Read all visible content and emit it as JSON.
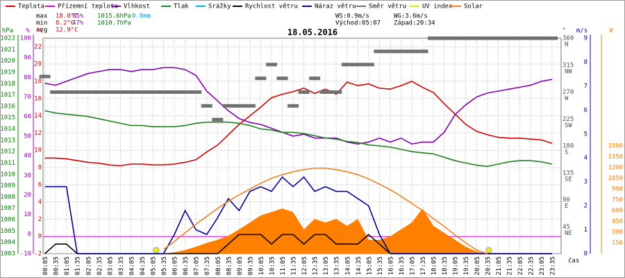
{
  "chart_data": {
    "type": "line",
    "title": "18.05.2016",
    "x_label": "čas",
    "stats": [
      {
        "label": "max",
        "values": [
          "18.0°C",
          "85%",
          "1015.6hPa",
          "0.0mm"
        ]
      },
      {
        "label": "min",
        "values": [
          "8.2°C",
          "47%",
          "1010.7hPa"
        ]
      },
      {
        "label": "avg",
        "values": [
          "12.9°C"
        ]
      }
    ],
    "wind_stats": [
      "WS:0.9m/s",
      "WG:3.6m/s"
    ],
    "sun": [
      "Východ:05:07",
      "Západ:20:34"
    ],
    "categories": [
      "00:05",
      "00:35",
      "01:05",
      "01:35",
      "02:05",
      "02:35",
      "03:05",
      "03:35",
      "04:05",
      "04:35",
      "05:05",
      "05:35",
      "06:05",
      "06:35",
      "07:05",
      "07:35",
      "08:05",
      "08:35",
      "09:05",
      "09:35",
      "10:05",
      "10:35",
      "11:05",
      "11:35",
      "12:05",
      "12:35",
      "13:05",
      "13:35",
      "14:05",
      "14:35",
      "15:05",
      "15:35",
      "16:05",
      "16:35",
      "17:05",
      "17:35",
      "18:05",
      "18:35",
      "19:05",
      "19:35",
      "20:05",
      "20:35",
      "21:05",
      "21:35",
      "22:05",
      "22:35",
      "23:05",
      "23:35"
    ],
    "axes": [
      {
        "title": "hPa",
        "color": "#008000",
        "lim": [
          1003,
          1022
        ],
        "ticks": [
          1003,
          1004,
          1005,
          1006,
          1007,
          1008,
          1009,
          1010,
          1011,
          1012,
          1013,
          1014,
          1015,
          1016,
          1017,
          1018,
          1019,
          1020,
          1021,
          1022
        ]
      },
      {
        "title": "%",
        "color": "#a000c0",
        "lim": [
          -10,
          100
        ],
        "ticks": [
          -10,
          0,
          10,
          20,
          30,
          40,
          50,
          60,
          70,
          80,
          90,
          100
        ]
      },
      {
        "title": "°C",
        "color": "#d00000",
        "lim": [
          -2,
          23
        ],
        "ticks": [
          -2,
          0,
          2,
          4,
          6,
          8,
          10,
          12,
          14,
          16,
          18,
          20,
          22
        ]
      },
      {
        "title": "°",
        "color": "#505050",
        "lim": [
          0,
          360
        ],
        "ticks": [
          45,
          90,
          135,
          180,
          225,
          270,
          315,
          360
        ],
        "tick_names": [
          "NE",
          "E",
          "SE",
          "S",
          "SW",
          "W",
          "NW",
          "N"
        ]
      },
      {
        "title": "m/s",
        "color": "#000090",
        "lim": [
          0,
          9
        ],
        "ticks": [
          0,
          1,
          2,
          3,
          4,
          5,
          6,
          7,
          8,
          9
        ]
      },
      {
        "title": "W",
        "color": "#ff8000",
        "lim": [
          0,
          3000
        ],
        "ticks": [
          150,
          300,
          450,
          600,
          750,
          900,
          1050,
          1200,
          1350,
          1500
        ]
      }
    ],
    "grid": true,
    "series": [
      {
        "name": "Teplota",
        "color": "#d00000",
        "axis": 2,
        "style": "line",
        "values": [
          9.1,
          9.1,
          9.0,
          8.8,
          8.6,
          8.5,
          8.3,
          8.2,
          8.4,
          8.4,
          8.3,
          8.3,
          8.4,
          8.6,
          8.9,
          9.8,
          10.6,
          11.8,
          13.0,
          14.0,
          15.0,
          16.1,
          16.5,
          16.8,
          17.2,
          16.6,
          17.1,
          16.5,
          17.9,
          17.5,
          17.7,
          17.2,
          17.1,
          17.5,
          18.0,
          17.3,
          16.7,
          15.4,
          14.2,
          13.0,
          12.2,
          11.8,
          11.5,
          11.4,
          11.4,
          11.3,
          11.2,
          10.8
        ]
      },
      {
        "name": "Přízemní teplota",
        "color": "#d000d0"
      },
      {
        "name": "Vlhkost",
        "color": "#8000b0",
        "axis": 1,
        "style": "line",
        "values": [
          77,
          76,
          78,
          80,
          82,
          83,
          84,
          84,
          83,
          84,
          84,
          85,
          85,
          84,
          81,
          73,
          68,
          63,
          59,
          57,
          56,
          54,
          52,
          50,
          51,
          49,
          49,
          49,
          47,
          46,
          47,
          49,
          47,
          49,
          46,
          47,
          47,
          52,
          61,
          66,
          70,
          72,
          73,
          74,
          75,
          76,
          78,
          79
        ]
      },
      {
        "name": "Tlak",
        "color": "#208020",
        "axis": 0,
        "style": "line",
        "values": [
          1015.6,
          1015.4,
          1015.3,
          1015.2,
          1015.1,
          1014.9,
          1014.7,
          1014.5,
          1014.3,
          1014.3,
          1014.2,
          1014.2,
          1014.2,
          1014.3,
          1014.5,
          1014.6,
          1014.6,
          1014.6,
          1014.5,
          1014.3,
          1014.0,
          1013.9,
          1013.7,
          1013.7,
          1013.6,
          1013.4,
          1013.2,
          1013.1,
          1012.9,
          1012.8,
          1012.6,
          1012.5,
          1012.4,
          1012.2,
          1012.0,
          1011.9,
          1011.8,
          1011.5,
          1011.2,
          1011.0,
          1010.8,
          1010.7,
          1010.9,
          1011.1,
          1011.2,
          1011.2,
          1011.1,
          1010.9
        ]
      },
      {
        "name": "Srážky",
        "color": "#00b0d0"
      },
      {
        "name": "Rychlost větru",
        "color": "#000000",
        "axis": 4,
        "style": "line",
        "values": [
          0,
          0.4,
          0.4,
          0,
          0,
          0,
          0,
          0,
          0,
          0,
          0,
          0,
          0,
          0,
          0,
          0,
          0,
          0.4,
          0.8,
          0.8,
          0.8,
          0.4,
          0.8,
          0.8,
          0.4,
          0.8,
          0.8,
          0.4,
          0.4,
          0.4,
          0.8,
          0.4,
          0,
          0,
          0,
          0,
          0,
          0,
          0,
          0,
          0,
          0,
          0,
          0,
          0,
          0,
          0,
          0
        ]
      },
      {
        "name": "Náraz větru",
        "color": "#000099",
        "axis": 4,
        "style": "line",
        "values": [
          2.8,
          2.8,
          2.8,
          0,
          0,
          0,
          0,
          0,
          0,
          0,
          0,
          0,
          0.8,
          1.8,
          1.0,
          0.8,
          1.5,
          2.3,
          1.8,
          2.6,
          2.8,
          2.6,
          3.2,
          2.8,
          3.2,
          2.6,
          2.8,
          2.6,
          2.6,
          2.3,
          2.0,
          0.8,
          0,
          0,
          0,
          0,
          0,
          0,
          0,
          0,
          0,
          0,
          0,
          0,
          0,
          0,
          0,
          0
        ]
      },
      {
        "name": "Směr větru",
        "color": "#707070",
        "axis": 3,
        "style": "dash",
        "values": [
          296,
          270,
          270,
          270,
          270,
          270,
          270,
          270,
          270,
          270,
          270,
          270,
          270,
          270,
          270,
          247,
          224,
          247,
          247,
          247,
          293,
          316,
          293,
          247,
          270,
          293,
          270,
          270,
          316,
          316,
          316,
          338,
          338,
          338,
          338,
          338,
          360,
          360,
          360,
          360,
          360,
          360,
          360,
          360,
          360,
          360,
          360,
          360
        ]
      },
      {
        "name": "UV index",
        "color": "#e8e800"
      },
      {
        "name": "Solar",
        "color": "#ff8000",
        "axis": 5,
        "style": "area",
        "values": [
          0,
          0,
          0,
          0,
          0,
          0,
          0,
          0,
          0,
          0,
          0,
          0,
          20,
          50,
          97,
          150,
          194,
          250,
          339,
          435,
          532,
          580,
          629,
          580,
          339,
          484,
          435,
          484,
          387,
          484,
          194,
          194,
          242,
          339,
          435,
          629,
          387,
          290,
          194,
          97,
          29,
          0,
          0,
          0,
          0,
          0,
          0,
          0
        ]
      },
      {
        "color": "#f08020",
        "axis": 5,
        "style": "line",
        "values": [
          null,
          null,
          null,
          null,
          null,
          null,
          null,
          null,
          null,
          null,
          null,
          60,
          170,
          290,
          410,
          520,
          630,
          730,
          820,
          900,
          980,
          1050,
          1100,
          1140,
          1170,
          1190,
          1190,
          1170,
          1140,
          1100,
          1040,
          970,
          890,
          800,
          700,
          600,
          490,
          380,
          260,
          150,
          50,
          0,
          null,
          null,
          null,
          null,
          null,
          null
        ]
      }
    ]
  }
}
